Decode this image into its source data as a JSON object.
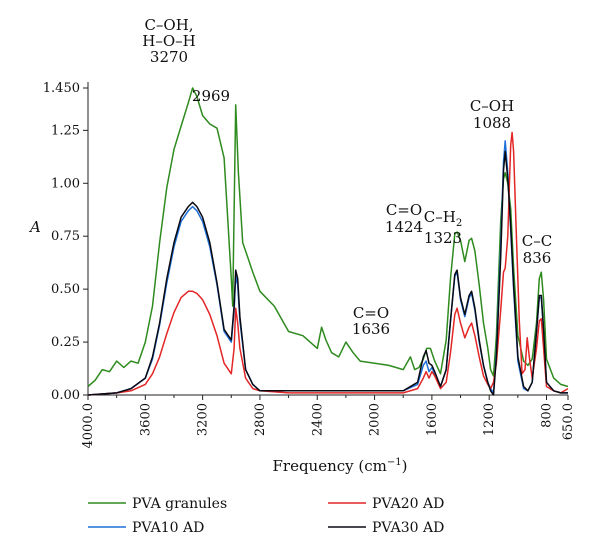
{
  "chart_data": {
    "type": "line",
    "xlabel": "Frequency (cm",
    "xlabel_sup": "−1",
    "xlabel_close": ")",
    "ylabel": "A",
    "xlim": [
      4000,
      650
    ],
    "ylim": [
      0,
      1.45
    ],
    "x_ticks": [
      "4000.0",
      "3600",
      "3200",
      "2800",
      "2400",
      "2000",
      "1600",
      "1200",
      "800",
      "650.0"
    ],
    "x_tick_values": [
      4000,
      3600,
      3200,
      2800,
      2400,
      2000,
      1600,
      1200,
      800,
      650
    ],
    "x_minor_ticks": [
      3800,
      3400,
      3000,
      2600,
      2200,
      1800,
      1400,
      1000
    ],
    "y_ticks": [
      "0.00",
      "0.25",
      "0.50",
      "0.75",
      "1.00",
      "1.25",
      "1.450"
    ],
    "y_tick_values": [
      0,
      0.25,
      0.5,
      0.75,
      1.0,
      1.25,
      1.45
    ],
    "legend_position": "bottom",
    "annotations": [
      {
        "id": "c-oh-hoh",
        "lines": [
          "C–OH,",
          "H–O–H",
          "3270"
        ]
      },
      {
        "id": "2969",
        "lines": [
          "2969"
        ]
      },
      {
        "id": "co-1424",
        "lines": [
          "C=O",
          "1424"
        ]
      },
      {
        "id": "ch2-1323",
        "lines": [
          "C–H",
          "1323"
        ],
        "sub": "2"
      },
      {
        "id": "coh-1088",
        "lines": [
          "C–OH",
          "1088"
        ]
      },
      {
        "id": "co-1636",
        "lines": [
          "C=O",
          "1636"
        ]
      },
      {
        "id": "cc-836",
        "lines": [
          "C–C",
          "836"
        ]
      }
    ],
    "series": [
      {
        "name": "PVA granules",
        "color": "#2e8b1e",
        "points": [
          [
            4000,
            0.04
          ],
          [
            3950,
            0.07
          ],
          [
            3900,
            0.12
          ],
          [
            3850,
            0.11
          ],
          [
            3800,
            0.16
          ],
          [
            3750,
            0.13
          ],
          [
            3700,
            0.16
          ],
          [
            3650,
            0.15
          ],
          [
            3600,
            0.25
          ],
          [
            3550,
            0.42
          ],
          [
            3500,
            0.72
          ],
          [
            3450,
            0.98
          ],
          [
            3400,
            1.16
          ],
          [
            3350,
            1.27
          ],
          [
            3300,
            1.38
          ],
          [
            3270,
            1.45
          ],
          [
            3240,
            1.41
          ],
          [
            3200,
            1.32
          ],
          [
            3150,
            1.28
          ],
          [
            3100,
            1.26
          ],
          [
            3050,
            1.12
          ],
          [
            3000,
            0.55
          ],
          [
            2990,
            0.42
          ],
          [
            2969,
            1.37
          ],
          [
            2950,
            1.05
          ],
          [
            2920,
            0.72
          ],
          [
            2900,
            0.68
          ],
          [
            2850,
            0.58
          ],
          [
            2800,
            0.49
          ],
          [
            2700,
            0.42
          ],
          [
            2600,
            0.3
          ],
          [
            2500,
            0.28
          ],
          [
            2450,
            0.25
          ],
          [
            2400,
            0.22
          ],
          [
            2370,
            0.32
          ],
          [
            2340,
            0.26
          ],
          [
            2300,
            0.2
          ],
          [
            2250,
            0.18
          ],
          [
            2200,
            0.25
          ],
          [
            2150,
            0.2
          ],
          [
            2100,
            0.16
          ],
          [
            2000,
            0.15
          ],
          [
            1900,
            0.14
          ],
          [
            1800,
            0.12
          ],
          [
            1750,
            0.18
          ],
          [
            1720,
            0.12
          ],
          [
            1690,
            0.13
          ],
          [
            1660,
            0.17
          ],
          [
            1636,
            0.22
          ],
          [
            1610,
            0.22
          ],
          [
            1580,
            0.16
          ],
          [
            1540,
            0.1
          ],
          [
            1500,
            0.26
          ],
          [
            1470,
            0.55
          ],
          [
            1440,
            0.76
          ],
          [
            1424,
            0.77
          ],
          [
            1400,
            0.73
          ],
          [
            1370,
            0.63
          ],
          [
            1340,
            0.73
          ],
          [
            1323,
            0.74
          ],
          [
            1300,
            0.68
          ],
          [
            1270,
            0.52
          ],
          [
            1240,
            0.34
          ],
          [
            1210,
            0.22
          ],
          [
            1190,
            0.12
          ],
          [
            1170,
            0.09
          ],
          [
            1150,
            0.28
          ],
          [
            1120,
            0.82
          ],
          [
            1100,
            1.02
          ],
          [
            1088,
            1.05
          ],
          [
            1070,
            1.0
          ],
          [
            1050,
            0.88
          ],
          [
            1030,
            0.6
          ],
          [
            1000,
            0.28
          ],
          [
            960,
            0.16
          ],
          [
            930,
            0.14
          ],
          [
            900,
            0.17
          ],
          [
            870,
            0.34
          ],
          [
            850,
            0.55
          ],
          [
            836,
            0.58
          ],
          [
            820,
            0.45
          ],
          [
            800,
            0.17
          ],
          [
            750,
            0.08
          ],
          [
            700,
            0.05
          ],
          [
            650,
            0.04
          ]
        ]
      },
      {
        "name": "PVA10 AD",
        "color": "#1e6fd8",
        "points": [
          [
            4000,
            0.0
          ],
          [
            3800,
            0.01
          ],
          [
            3700,
            0.03
          ],
          [
            3600,
            0.08
          ],
          [
            3550,
            0.17
          ],
          [
            3500,
            0.33
          ],
          [
            3450,
            0.53
          ],
          [
            3400,
            0.7
          ],
          [
            3350,
            0.82
          ],
          [
            3300,
            0.87
          ],
          [
            3270,
            0.89
          ],
          [
            3240,
            0.87
          ],
          [
            3200,
            0.82
          ],
          [
            3150,
            0.7
          ],
          [
            3100,
            0.52
          ],
          [
            3050,
            0.3
          ],
          [
            3000,
            0.25
          ],
          [
            2980,
            0.4
          ],
          [
            2969,
            0.56
          ],
          [
            2955,
            0.52
          ],
          [
            2940,
            0.35
          ],
          [
            2900,
            0.12
          ],
          [
            2850,
            0.05
          ],
          [
            2800,
            0.02
          ],
          [
            2600,
            0.02
          ],
          [
            2400,
            0.02
          ],
          [
            2200,
            0.02
          ],
          [
            2000,
            0.02
          ],
          [
            1800,
            0.02
          ],
          [
            1700,
            0.05
          ],
          [
            1660,
            0.14
          ],
          [
            1640,
            0.16
          ],
          [
            1620,
            0.11
          ],
          [
            1600,
            0.13
          ],
          [
            1580,
            0.1
          ],
          [
            1540,
            0.04
          ],
          [
            1500,
            0.12
          ],
          [
            1470,
            0.35
          ],
          [
            1440,
            0.56
          ],
          [
            1424,
            0.58
          ],
          [
            1400,
            0.45
          ],
          [
            1370,
            0.37
          ],
          [
            1340,
            0.46
          ],
          [
            1323,
            0.48
          ],
          [
            1300,
            0.4
          ],
          [
            1270,
            0.25
          ],
          [
            1240,
            0.14
          ],
          [
            1210,
            0.06
          ],
          [
            1190,
            0.03
          ],
          [
            1170,
            0.01
          ],
          [
            1150,
            0.2
          ],
          [
            1120,
            0.7
          ],
          [
            1100,
            1.1
          ],
          [
            1088,
            1.2
          ],
          [
            1070,
            1.05
          ],
          [
            1050,
            0.78
          ],
          [
            1030,
            0.5
          ],
          [
            1000,
            0.16
          ],
          [
            960,
            0.03
          ],
          [
            930,
            0.02
          ],
          [
            900,
            0.06
          ],
          [
            870,
            0.3
          ],
          [
            850,
            0.46
          ],
          [
            836,
            0.46
          ],
          [
            820,
            0.3
          ],
          [
            800,
            0.06
          ],
          [
            750,
            0.02
          ],
          [
            700,
            0.01
          ],
          [
            650,
            0.01
          ]
        ]
      },
      {
        "name": "PVA20 AD",
        "color": "#e32626",
        "points": [
          [
            4000,
            0.0
          ],
          [
            3800,
            0.01
          ],
          [
            3700,
            0.02
          ],
          [
            3600,
            0.05
          ],
          [
            3550,
            0.1
          ],
          [
            3500,
            0.18
          ],
          [
            3450,
            0.29
          ],
          [
            3400,
            0.39
          ],
          [
            3350,
            0.46
          ],
          [
            3300,
            0.49
          ],
          [
            3270,
            0.49
          ],
          [
            3240,
            0.48
          ],
          [
            3200,
            0.45
          ],
          [
            3150,
            0.38
          ],
          [
            3100,
            0.28
          ],
          [
            3050,
            0.15
          ],
          [
            3000,
            0.1
          ],
          [
            2980,
            0.22
          ],
          [
            2969,
            0.41
          ],
          [
            2955,
            0.34
          ],
          [
            2940,
            0.22
          ],
          [
            2900,
            0.08
          ],
          [
            2850,
            0.03
          ],
          [
            2800,
            0.02
          ],
          [
            2600,
            0.01
          ],
          [
            2400,
            0.01
          ],
          [
            2200,
            0.01
          ],
          [
            2000,
            0.01
          ],
          [
            1800,
            0.01
          ],
          [
            1700,
            0.03
          ],
          [
            1660,
            0.08
          ],
          [
            1640,
            0.11
          ],
          [
            1620,
            0.08
          ],
          [
            1600,
            0.11
          ],
          [
            1580,
            0.09
          ],
          [
            1540,
            0.03
          ],
          [
            1500,
            0.06
          ],
          [
            1470,
            0.2
          ],
          [
            1440,
            0.38
          ],
          [
            1424,
            0.41
          ],
          [
            1400,
            0.34
          ],
          [
            1370,
            0.27
          ],
          [
            1340,
            0.32
          ],
          [
            1323,
            0.34
          ],
          [
            1300,
            0.28
          ],
          [
            1270,
            0.18
          ],
          [
            1240,
            0.09
          ],
          [
            1210,
            0.05
          ],
          [
            1190,
            0.03
          ],
          [
            1170,
            0.06
          ],
          [
            1150,
            0.15
          ],
          [
            1120,
            0.4
          ],
          [
            1100,
            0.58
          ],
          [
            1088,
            0.6
          ],
          [
            1070,
            0.75
          ],
          [
            1060,
            0.98
          ],
          [
            1050,
            1.18
          ],
          [
            1040,
            1.24
          ],
          [
            1030,
            1.15
          ],
          [
            1010,
            0.75
          ],
          [
            990,
            0.35
          ],
          [
            970,
            0.1
          ],
          [
            950,
            0.12
          ],
          [
            935,
            0.27
          ],
          [
            920,
            0.18
          ],
          [
            900,
            0.08
          ],
          [
            870,
            0.22
          ],
          [
            850,
            0.35
          ],
          [
            836,
            0.36
          ],
          [
            820,
            0.22
          ],
          [
            800,
            0.04
          ],
          [
            750,
            0.02
          ],
          [
            700,
            0.01
          ],
          [
            650,
            0.03
          ]
        ]
      },
      {
        "name": "PVA30 AD",
        "color": "#0a0a14",
        "points": [
          [
            4000,
            0.0
          ],
          [
            3800,
            0.01
          ],
          [
            3700,
            0.03
          ],
          [
            3600,
            0.08
          ],
          [
            3550,
            0.18
          ],
          [
            3500,
            0.34
          ],
          [
            3450,
            0.55
          ],
          [
            3400,
            0.72
          ],
          [
            3350,
            0.84
          ],
          [
            3300,
            0.89
          ],
          [
            3270,
            0.91
          ],
          [
            3240,
            0.89
          ],
          [
            3200,
            0.84
          ],
          [
            3150,
            0.72
          ],
          [
            3100,
            0.53
          ],
          [
            3050,
            0.31
          ],
          [
            3000,
            0.26
          ],
          [
            2980,
            0.42
          ],
          [
            2969,
            0.59
          ],
          [
            2955,
            0.55
          ],
          [
            2940,
            0.37
          ],
          [
            2900,
            0.12
          ],
          [
            2850,
            0.05
          ],
          [
            2800,
            0.02
          ],
          [
            2600,
            0.02
          ],
          [
            2400,
            0.02
          ],
          [
            2200,
            0.02
          ],
          [
            2000,
            0.02
          ],
          [
            1800,
            0.02
          ],
          [
            1700,
            0.06
          ],
          [
            1660,
            0.18
          ],
          [
            1640,
            0.21
          ],
          [
            1620,
            0.15
          ],
          [
            1600,
            0.14
          ],
          [
            1580,
            0.11
          ],
          [
            1540,
            0.04
          ],
          [
            1500,
            0.12
          ],
          [
            1470,
            0.35
          ],
          [
            1440,
            0.57
          ],
          [
            1424,
            0.59
          ],
          [
            1400,
            0.46
          ],
          [
            1370,
            0.38
          ],
          [
            1340,
            0.47
          ],
          [
            1323,
            0.49
          ],
          [
            1300,
            0.41
          ],
          [
            1270,
            0.26
          ],
          [
            1240,
            0.14
          ],
          [
            1210,
            0.06
          ],
          [
            1190,
            0.02
          ],
          [
            1170,
            0.0
          ],
          [
            1150,
            0.18
          ],
          [
            1120,
            0.65
          ],
          [
            1100,
            1.06
          ],
          [
            1088,
            1.15
          ],
          [
            1070,
            1.02
          ],
          [
            1050,
            0.8
          ],
          [
            1030,
            0.52
          ],
          [
            1000,
            0.18
          ],
          [
            960,
            0.04
          ],
          [
            930,
            0.02
          ],
          [
            900,
            0.06
          ],
          [
            870,
            0.3
          ],
          [
            850,
            0.47
          ],
          [
            836,
            0.47
          ],
          [
            820,
            0.31
          ],
          [
            800,
            0.06
          ],
          [
            750,
            0.02
          ],
          [
            700,
            0.01
          ],
          [
            650,
            0.01
          ]
        ]
      }
    ]
  }
}
